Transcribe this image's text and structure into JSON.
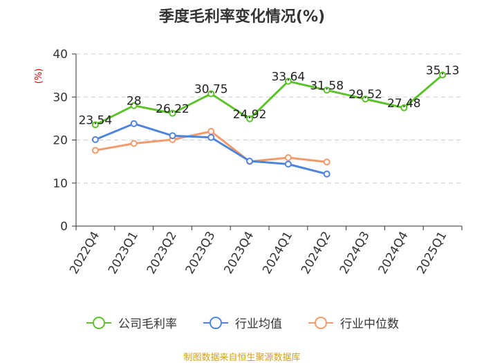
{
  "chart_data": {
    "type": "line",
    "title": "季度毛利率变化情况(%)",
    "ylabel": "(%)",
    "ylim": [
      0,
      40
    ],
    "yticks": [
      0,
      10,
      20,
      30,
      40
    ],
    "grid": true,
    "legend_position": "bottom",
    "categories": [
      "2022Q4",
      "2023Q1",
      "2023Q2",
      "2023Q3",
      "2023Q4",
      "2024Q1",
      "2024Q2",
      "2024Q3",
      "2024Q4",
      "2025Q1"
    ],
    "series": [
      {
        "name": "公司毛利率",
        "color": "#5cc22a",
        "values": [
          23.54,
          28,
          26.22,
          30.75,
          24.92,
          33.64,
          31.58,
          29.52,
          27.48,
          35.13
        ],
        "labels": [
          "23.54",
          "28",
          "26.22",
          "30.75",
          "24.92",
          "33.64",
          "31.58",
          "29.52",
          "27.48",
          "35.13"
        ]
      },
      {
        "name": "行业均值",
        "color": "#4f84dd",
        "values": [
          20.1,
          23.8,
          21.0,
          20.6,
          15.1,
          14.4,
          12.1,
          null,
          null,
          null
        ]
      },
      {
        "name": "行业中位数",
        "color": "#f49a6a",
        "values": [
          17.6,
          19.2,
          20.1,
          22.0,
          15.0,
          15.9,
          14.9,
          null,
          null,
          null
        ]
      }
    ]
  },
  "source_note": "制图数据来自恒生聚源数据库"
}
